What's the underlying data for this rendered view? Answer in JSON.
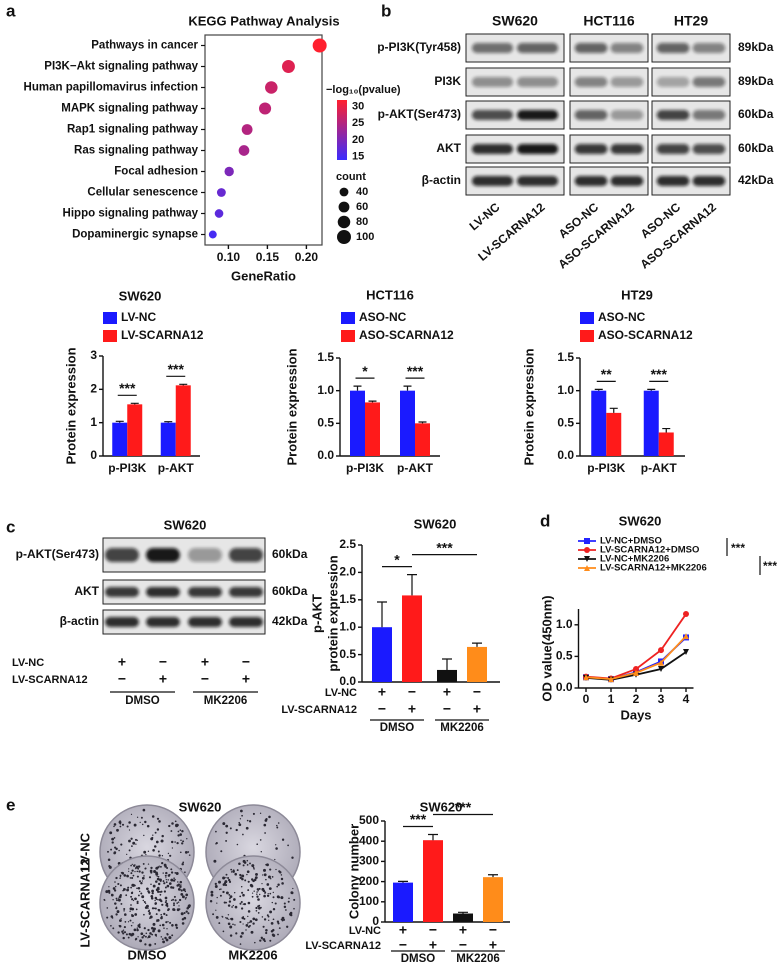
{
  "panel_labels": [
    "a",
    "b",
    "c",
    "d",
    "e"
  ],
  "chart_data": [
    {
      "type": "dot",
      "title": "KEGG Pathway Analysis",
      "categories": [
        "Pathways in cancer",
        "PI3K−Akt signaling pathway",
        "Human papillomavirus infection",
        "MAPK signaling pathway",
        "Rap1 signaling pathway",
        "Ras signaling pathway",
        "Focal adhesion",
        "Cellular senescence",
        "Hippo signaling pathway",
        "Dopaminergic synapse"
      ],
      "x": [
        0.217,
        0.177,
        0.155,
        0.147,
        0.124,
        0.12,
        0.101,
        0.091,
        0.088,
        0.08
      ],
      "pvalue": [
        32,
        29,
        27,
        26,
        25,
        24,
        20,
        18,
        17,
        15
      ],
      "count": [
        100,
        85,
        80,
        75,
        60,
        58,
        45,
        40,
        38,
        32
      ],
      "xlabel": "GeneRatio",
      "xlim": [
        0.07,
        0.22
      ],
      "xticks": [
        {
          "value": 0.1,
          "label": "0.10"
        },
        0.15,
        {
          "value": 0.2,
          "label": "0.20"
        }
      ],
      "color_title": "−log₁₀(pvalue)",
      "clim": [
        14,
        32
      ],
      "cticks": [
        15,
        20,
        25,
        30
      ],
      "colors": [
        "#3b2cff",
        "#ff1f2e"
      ],
      "size_title": "count",
      "size_ticks": [
        40,
        60,
        80,
        100
      ]
    },
    {
      "type": "grouped_bar",
      "title": "SW620",
      "ylabel": "Protein expression",
      "categories": [
        "p-PI3K",
        "p-AKT"
      ],
      "series": [
        {
          "name": "LV-NC",
          "color": "#1a1aff",
          "values": [
            1.0,
            1.0
          ],
          "errors": [
            0.04,
            0.03
          ]
        },
        {
          "name": "LV-SCARNA12",
          "color": "#ff1a1a",
          "values": [
            1.55,
            2.12
          ],
          "errors": [
            0.03,
            0.03
          ]
        }
      ],
      "ylim": [
        0,
        3
      ],
      "yticks": [
        0,
        1,
        2,
        3
      ],
      "significance": [
        "***",
        "***"
      ]
    },
    {
      "type": "grouped_bar",
      "title": "HCT116",
      "ylabel": "Protein expression",
      "categories": [
        "p-PI3K",
        "p-AKT"
      ],
      "series": [
        {
          "name": "ASO-NC",
          "color": "#1a1aff",
          "values": [
            1.0,
            1.0
          ],
          "errors": [
            0.07,
            0.07
          ]
        },
        {
          "name": "ASO-SCARNA12",
          "color": "#ff1a1a",
          "values": [
            0.82,
            0.5
          ],
          "errors": [
            0.02,
            0.02
          ]
        }
      ],
      "ylim": [
        0,
        1.5
      ],
      "yticks": [
        {
          "value": 0,
          "label": "0.0"
        },
        0.5,
        {
          "value": 1,
          "label": "1.0"
        },
        1.5
      ],
      "significance": [
        "*",
        "***"
      ]
    },
    {
      "type": "grouped_bar",
      "title": "HT29",
      "ylabel": "Protein expression",
      "categories": [
        "p-PI3K",
        "p-AKT"
      ],
      "series": [
        {
          "name": "ASO-NC",
          "color": "#1a1aff",
          "values": [
            1.0,
            1.0
          ],
          "errors": [
            0.02,
            0.02
          ]
        },
        {
          "name": "ASO-SCARNA12",
          "color": "#ff1a1a",
          "values": [
            0.66,
            0.36
          ],
          "errors": [
            0.07,
            0.06
          ]
        }
      ],
      "ylim": [
        0,
        1.5
      ],
      "yticks": [
        {
          "value": 0,
          "label": "0.0"
        },
        0.5,
        {
          "value": 1,
          "label": "1.0"
        },
        1.5
      ],
      "significance": [
        "**",
        "***"
      ]
    },
    {
      "type": "bar",
      "title": "SW620",
      "ylabel": [
        "p-AKT",
        "protein expression"
      ],
      "values": [
        1.0,
        1.58,
        0.22,
        0.64
      ],
      "errors": [
        0.46,
        0.38,
        0.2,
        0.07
      ],
      "colors": [
        "#1a1aff",
        "#ff1a1a",
        "#111111",
        "#ff8c1a"
      ],
      "ylim": [
        0,
        2.5
      ],
      "yticks": [
        {
          "value": 0,
          "label": "0.0"
        },
        0.5,
        {
          "value": 1,
          "label": "1.0"
        },
        1.5,
        {
          "value": 2,
          "label": "2.0"
        },
        2.5
      ],
      "treatments": [
        {
          "name": "LV-NC",
          "signs": [
            "+",
            "−",
            "+",
            "−"
          ]
        },
        {
          "name": "LV-SCARNA12",
          "signs": [
            "−",
            "+",
            "−",
            "+"
          ]
        }
      ],
      "groups": [
        "DMSO",
        "MK2206"
      ],
      "significance": [
        "*",
        "***"
      ]
    },
    {
      "type": "line",
      "title": "SW620",
      "xlabel": "Days",
      "ylabel": "OD value(450nm)",
      "x": [
        0,
        1,
        2,
        3,
        4
      ],
      "xlim": [
        -0.3,
        4.3
      ],
      "xticks": [
        0,
        1,
        2,
        3,
        4
      ],
      "ylim": [
        0,
        1.25
      ],
      "yticks": [
        {
          "value": 0,
          "label": "0.0"
        },
        0.5,
        {
          "value": 1,
          "label": "1.0"
        }
      ],
      "series": [
        {
          "name": "LV-NC+DMSO",
          "color": "#2424ff",
          "values": [
            0.17,
            0.14,
            0.25,
            0.42,
            0.8
          ]
        },
        {
          "name": "LV-SCARNA12+DMSO",
          "color": "#ee2222",
          "values": [
            0.18,
            0.15,
            0.3,
            0.6,
            1.17
          ]
        },
        {
          "name": "LV-NC+MK2206",
          "color": "#111111",
          "values": [
            0.16,
            0.13,
            0.21,
            0.3,
            0.57
          ]
        },
        {
          "name": "LV-SCARNA12+MK2206",
          "color": "#ff8c1a",
          "values": [
            0.17,
            0.14,
            0.24,
            0.4,
            0.82
          ]
        }
      ],
      "significance": [
        "***",
        "***"
      ]
    },
    {
      "type": "bar",
      "title": "SW620",
      "ylabel": [
        "Colony number"
      ],
      "values": [
        195,
        405,
        42,
        222
      ],
      "errors": [
        6,
        28,
        6,
        12
      ],
      "colors": [
        "#1a1aff",
        "#ff1a1a",
        "#111111",
        "#ff8c1a"
      ],
      "ylim": [
        0,
        500
      ],
      "yticks": [
        0,
        100,
        200,
        300,
        400,
        500
      ],
      "treatments": [
        {
          "name": "LV-NC",
          "signs": [
            "+",
            "−",
            "+",
            "−"
          ]
        },
        {
          "name": "LV-SCARNA12",
          "signs": [
            "−",
            "+",
            "−",
            "+"
          ]
        }
      ],
      "groups": [
        "DMSO",
        "MK2206"
      ],
      "significance": [
        "***",
        "***"
      ]
    }
  ],
  "blot_b": {
    "columns": [
      "SW620",
      "HCT116",
      "HT29"
    ],
    "rows": [
      "p-PI3K(Tyr458)",
      "PI3K",
      "p-AKT(Ser473)",
      "AKT",
      "β-actin"
    ],
    "sizes": [
      "89kDa",
      "89kDa",
      "60kDa",
      "60kDa",
      "42kDa"
    ],
    "lanes": [
      "LV-NC",
      "LV-SCARNA12",
      "ASO-NC",
      "ASO-SCARNA12",
      "ASO-NC",
      "ASO-SCARNA12"
    ]
  },
  "blot_c": {
    "title": "SW620",
    "rows": [
      "p-AKT(Ser473)",
      "AKT",
      "β-actin"
    ],
    "sizes": [
      "60kDa",
      "60kDa",
      "42kDa"
    ],
    "treatments": [
      {
        "name": "LV-NC",
        "signs": [
          "+",
          "−",
          "+",
          "−"
        ]
      },
      {
        "name": "LV-SCARNA12",
        "signs": [
          "−",
          "+",
          "−",
          "+"
        ]
      }
    ],
    "groups": [
      "DMSO",
      "MK2206"
    ]
  },
  "plates_e": {
    "title": "SW620",
    "rows": [
      "LV-NC",
      "LV-SCARNA12"
    ],
    "columns": [
      "DMSO",
      "MK2206"
    ]
  }
}
